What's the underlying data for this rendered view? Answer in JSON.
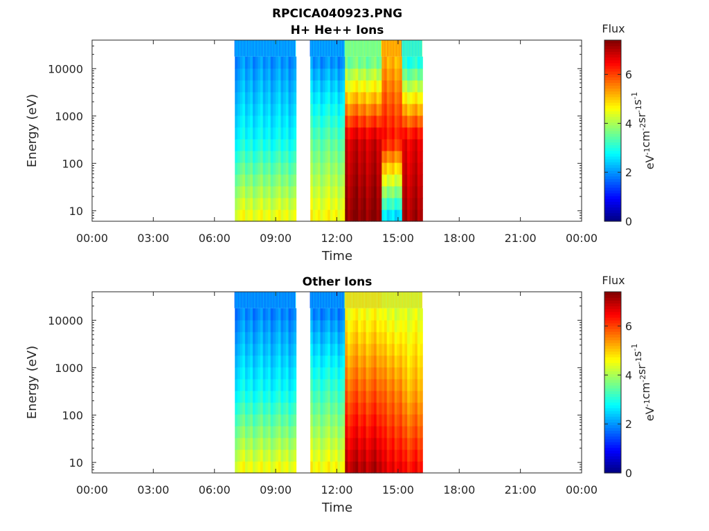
{
  "figure": {
    "title_line1": "RPCICA040923.PNG"
  },
  "colorbar": {
    "label": "Flux",
    "unit_main": "eV",
    "unit_sup1": "-1",
    "unit_mid1": "cm",
    "unit_sup2": "-2",
    "unit_mid2": "sr",
    "unit_sup3": "-1",
    "unit_mid3": "s",
    "unit_sup4": "-1",
    "ticks": [
      "0",
      "2",
      "4",
      "6"
    ],
    "range": [
      0,
      7.4
    ],
    "colormap": "jet"
  },
  "chart_data": [
    {
      "type": "heatmap",
      "title": "H+ He++ Ions",
      "xlabel": "Time",
      "ylabel": "Energy (eV)",
      "x_ticks": [
        "00:00",
        "03:00",
        "06:00",
        "09:00",
        "12:00",
        "15:00",
        "18:00",
        "21:00",
        "00:00"
      ],
      "xlim_hours": [
        0,
        24
      ],
      "y_scale": "log",
      "y_ticks": [
        "10",
        "100",
        "1000",
        "10000"
      ],
      "ylim": [
        6,
        40000
      ],
      "colorbar_range": [
        0,
        7.4
      ],
      "data_gaps_hours": [
        [
          0,
          7.0
        ],
        [
          10.0,
          10.7
        ],
        [
          16.2,
          24
        ]
      ],
      "segments": [
        {
          "t_start": 7.0,
          "t_end": 10.0,
          "low_energy_flux": 4.5,
          "mid_energy_flux": 2.8,
          "high_energy_flux": 2.0
        },
        {
          "t_start": 10.7,
          "t_end": 12.4,
          "low_energy_flux": 4.6,
          "mid_energy_flux": 3.4,
          "high_energy_flux": 2.0
        },
        {
          "t_start": 12.4,
          "t_end": 14.2,
          "low_energy_flux": 7.3,
          "mid_energy_flux": 6.8,
          "high_energy_flux": 3.6
        },
        {
          "t_start": 14.2,
          "t_end": 15.2,
          "low_energy_flux": 2.6,
          "mid_energy_flux": 6.4,
          "high_energy_flux": 5.2
        },
        {
          "t_start": 15.2,
          "t_end": 16.2,
          "low_energy_flux": 7.1,
          "mid_energy_flux": 6.6,
          "high_energy_flux": 3.0
        }
      ]
    },
    {
      "type": "heatmap",
      "title": "Other Ions",
      "xlabel": "Time",
      "ylabel": "Energy (eV)",
      "x_ticks": [
        "00:00",
        "03:00",
        "06:00",
        "09:00",
        "12:00",
        "15:00",
        "18:00",
        "21:00",
        "00:00"
      ],
      "xlim_hours": [
        0,
        24
      ],
      "y_scale": "log",
      "y_ticks": [
        "10",
        "100",
        "1000",
        "10000"
      ],
      "ylim": [
        6,
        40000
      ],
      "colorbar_range": [
        0,
        7.4
      ],
      "data_gaps_hours": [
        [
          0,
          7.0
        ],
        [
          10.0,
          10.7
        ],
        [
          16.2,
          24
        ]
      ],
      "segments": [
        {
          "t_start": 7.0,
          "t_end": 10.0,
          "low_energy_flux": 4.5,
          "mid_energy_flux": 2.8,
          "high_energy_flux": 1.9
        },
        {
          "t_start": 10.7,
          "t_end": 12.4,
          "low_energy_flux": 4.6,
          "mid_energy_flux": 3.2,
          "high_energy_flux": 1.9
        },
        {
          "t_start": 12.4,
          "t_end": 14.2,
          "low_energy_flux": 7.0,
          "mid_energy_flux": 5.8,
          "high_energy_flux": 4.6
        },
        {
          "t_start": 14.2,
          "t_end": 15.2,
          "low_energy_flux": 6.6,
          "mid_energy_flux": 5.6,
          "high_energy_flux": 4.4
        },
        {
          "t_start": 15.2,
          "t_end": 16.2,
          "low_energy_flux": 6.4,
          "mid_energy_flux": 5.2,
          "high_energy_flux": 4.4
        }
      ]
    }
  ]
}
